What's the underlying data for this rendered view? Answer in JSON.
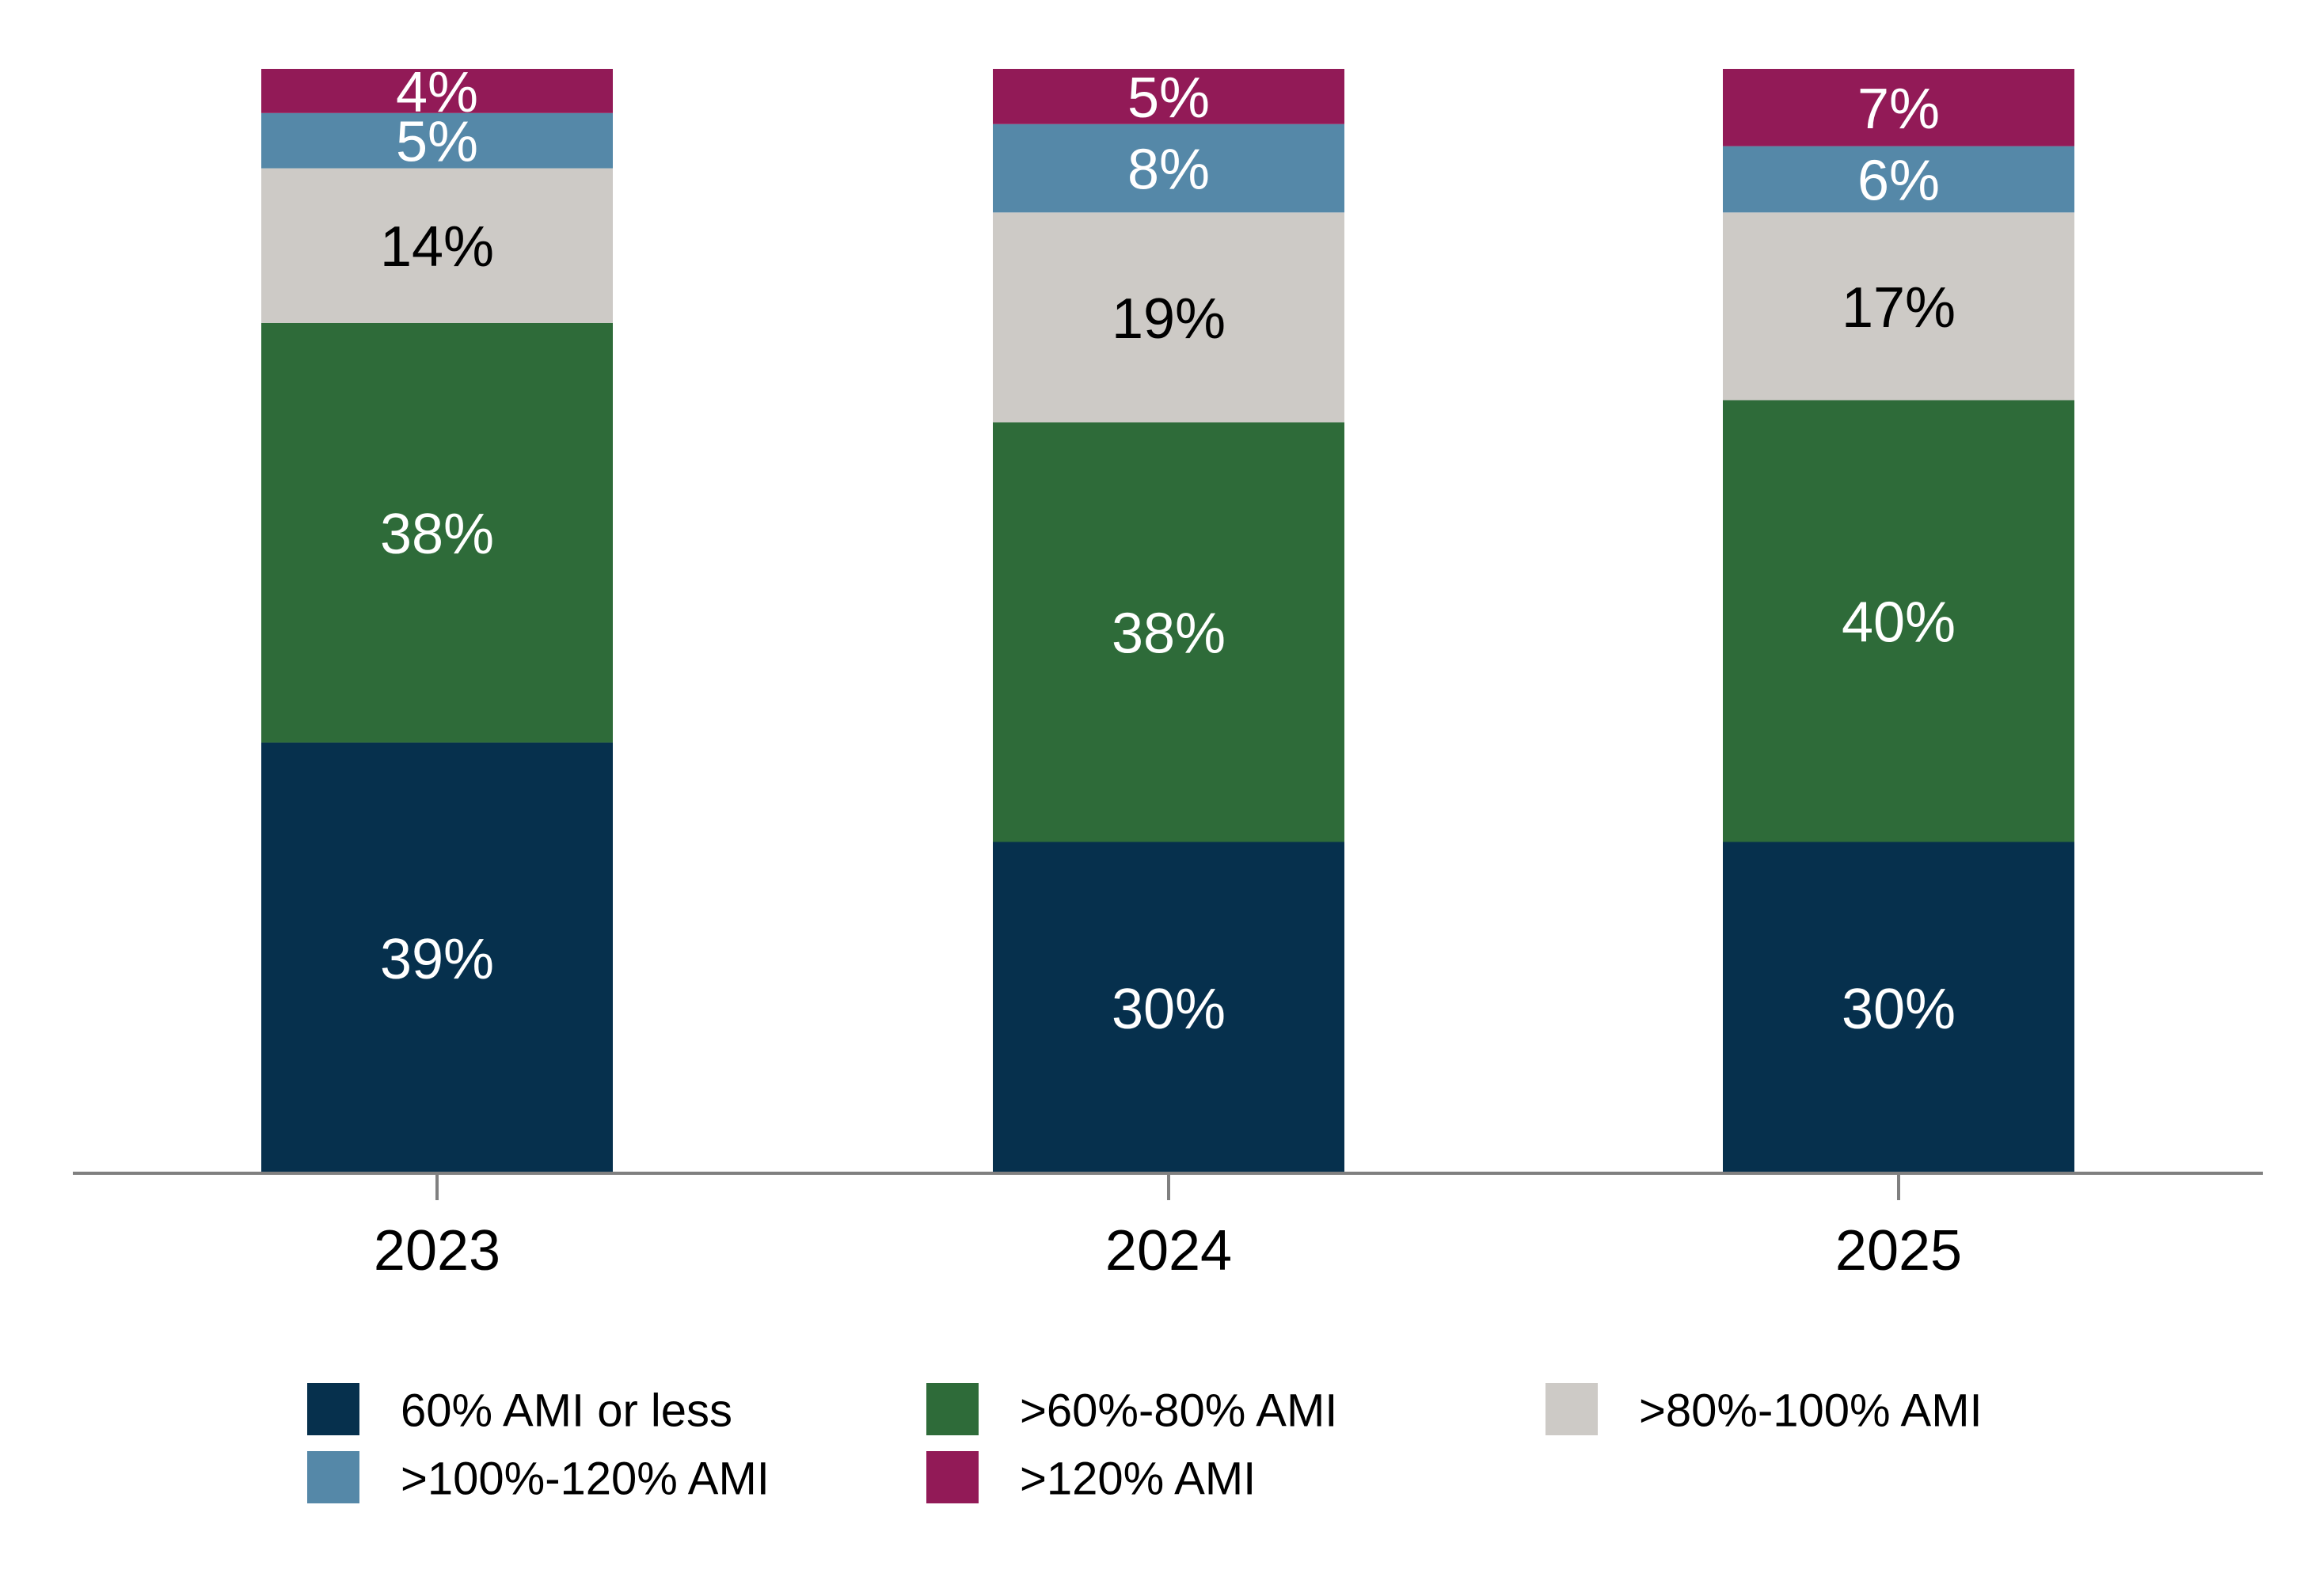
{
  "chart_data": {
    "type": "bar",
    "stacked": true,
    "categories": [
      "2023",
      "2024",
      "2025"
    ],
    "series": [
      {
        "name": "60% AMI or less",
        "values": [
          39,
          30,
          30
        ],
        "color": "#06304d",
        "label_color": "#ffffff"
      },
      {
        "name": ">60%-80% AMI",
        "values": [
          38,
          38,
          40
        ],
        "color": "#2e6b39",
        "label_color": "#ffffff"
      },
      {
        "name": ">80%-100% AMI",
        "values": [
          14,
          19,
          17
        ],
        "color": "#cdcac6",
        "label_color": "#000000"
      },
      {
        "name": ">100%-120% AMI",
        "values": [
          5,
          8,
          6
        ],
        "color": "#5588a8",
        "label_color": "#ffffff"
      },
      {
        "name": ">120% AMI",
        "values": [
          4,
          5,
          7
        ],
        "color": "#921a57",
        "label_color": "#ffffff"
      }
    ],
    "data_labels": [
      [
        "39%",
        "30%",
        "30%"
      ],
      [
        "38%",
        "38%",
        "40%"
      ],
      [
        "14%",
        "19%",
        "17%"
      ],
      [
        "5%",
        "8%",
        "6%"
      ],
      [
        "4%",
        "5%",
        "7%"
      ]
    ],
    "ylim": [
      0,
      100
    ],
    "grid": false,
    "legend_position": "bottom"
  }
}
